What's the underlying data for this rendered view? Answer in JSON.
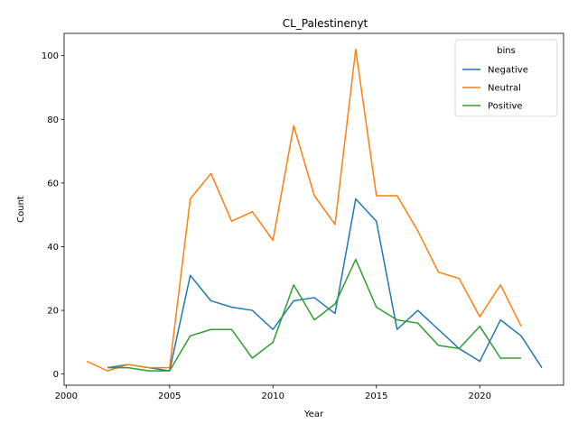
{
  "chart_data": {
    "type": "line",
    "title": "CL_Palestinenyt",
    "xlabel": "Year",
    "ylabel": "Count",
    "xlim": [
      1999.9,
      2024.05
    ],
    "ylim": [
      -3.5,
      107
    ],
    "xticks": [
      2000,
      2005,
      2010,
      2015,
      2020
    ],
    "yticks": [
      0,
      20,
      40,
      60,
      80,
      100
    ],
    "legend": {
      "title": "bins",
      "placement": "top-right"
    },
    "grid": false,
    "series": [
      {
        "name": "Negative",
        "color": "#1f77b4",
        "points": [
          [
            2002,
            2
          ],
          [
            2003,
            3
          ],
          [
            2004,
            2
          ],
          [
            2005,
            1
          ],
          [
            2006,
            31
          ],
          [
            2007,
            23
          ],
          [
            2008,
            21
          ],
          [
            2009,
            20
          ],
          [
            2010,
            14
          ],
          [
            2011,
            23
          ],
          [
            2012,
            24
          ],
          [
            2013,
            19
          ],
          [
            2014,
            55
          ],
          [
            2015,
            48
          ],
          [
            2016,
            14
          ],
          [
            2017,
            20
          ],
          [
            2018,
            14
          ],
          [
            2019,
            8
          ],
          [
            2020,
            4
          ],
          [
            2021,
            17
          ],
          [
            2022,
            12
          ],
          [
            2023,
            2
          ]
        ]
      },
      {
        "name": "Neutral",
        "color": "#ff7f0e",
        "points": [
          [
            2001,
            4
          ],
          [
            2002,
            1
          ],
          [
            2003,
            3
          ],
          [
            2004,
            2
          ],
          [
            2005,
            2
          ],
          [
            2006,
            55
          ],
          [
            2007,
            63
          ],
          [
            2008,
            48
          ],
          [
            2009,
            51
          ],
          [
            2010,
            42
          ],
          [
            2011,
            78
          ],
          [
            2012,
            56
          ],
          [
            2013,
            47
          ],
          [
            2014,
            102
          ],
          [
            2015,
            56
          ],
          [
            2016,
            56
          ],
          [
            2017,
            45
          ],
          [
            2018,
            32
          ],
          [
            2019,
            30
          ],
          [
            2020,
            18
          ],
          [
            2021,
            28
          ],
          [
            2022,
            15
          ]
        ]
      },
      {
        "name": "Positive",
        "color": "#2ca02c",
        "points": [
          [
            2002,
            2
          ],
          [
            2003,
            2
          ],
          [
            2004,
            1
          ],
          [
            2005,
            1
          ],
          [
            2006,
            12
          ],
          [
            2007,
            14
          ],
          [
            2008,
            14
          ],
          [
            2009,
            5
          ],
          [
            2010,
            10
          ],
          [
            2011,
            28
          ],
          [
            2012,
            17
          ],
          [
            2013,
            22
          ],
          [
            2014,
            36
          ],
          [
            2015,
            21
          ],
          [
            2016,
            17
          ],
          [
            2017,
            16
          ],
          [
            2018,
            9
          ],
          [
            2019,
            8
          ],
          [
            2020,
            15
          ],
          [
            2021,
            5
          ],
          [
            2022,
            5
          ]
        ]
      }
    ]
  }
}
